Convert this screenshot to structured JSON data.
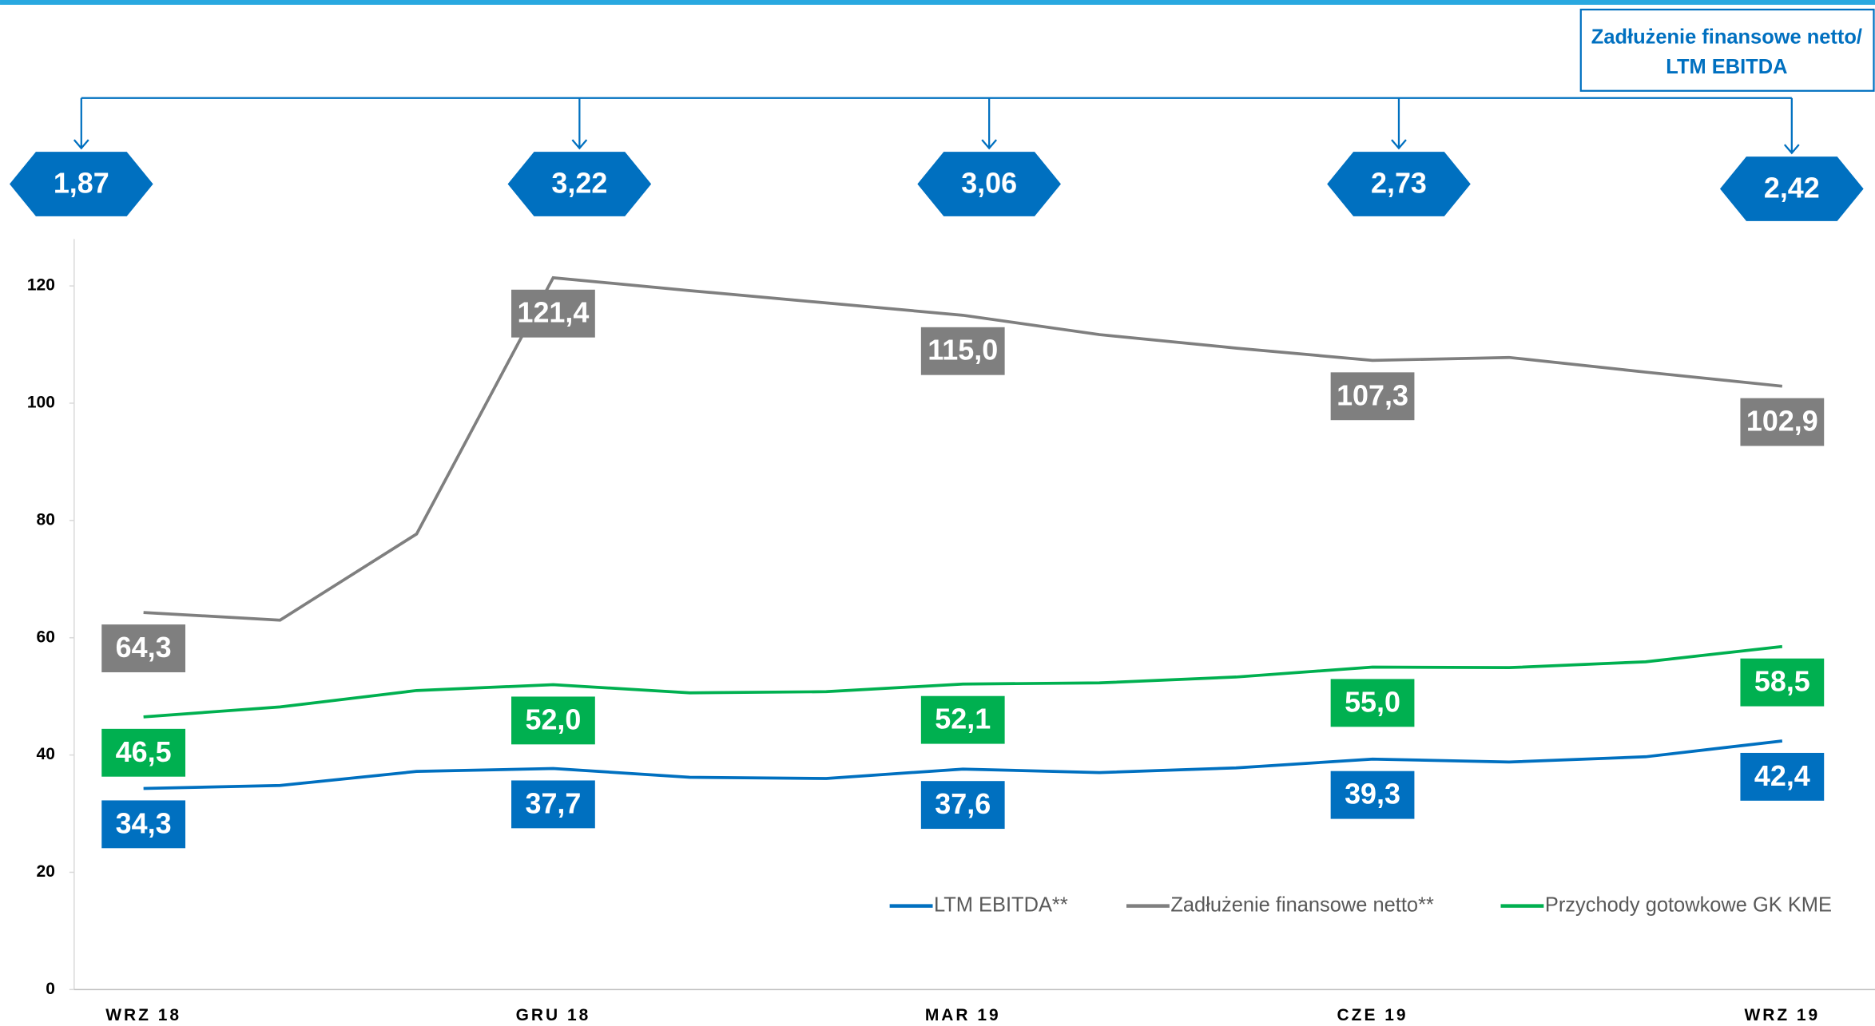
{
  "chart_data": {
    "type": "line",
    "categories": [
      "WRZ 18",
      null,
      null,
      "GRU 18",
      null,
      null,
      "MAR 19",
      null,
      null,
      "CZE 19",
      null,
      null,
      "WRZ 19"
    ],
    "ylim": [
      0,
      128
    ],
    "yticks": [
      0,
      20,
      40,
      60,
      80,
      100,
      120
    ],
    "legend": "bottom-right",
    "series": [
      {
        "name": "LTM EBITDA**",
        "color": "#0070c0",
        "values": [
          34.3,
          34.8,
          37.2,
          37.7,
          36.2,
          36.0,
          37.6,
          37.0,
          37.8,
          39.3,
          38.8,
          39.7,
          42.4
        ],
        "value_labels": [
          "34,3",
          null,
          null,
          "37,7",
          null,
          null,
          "37,6",
          null,
          null,
          "39,3",
          null,
          null,
          "42,4"
        ]
      },
      {
        "name": "Zadłużenie finansowe netto**",
        "color": "#7f7f7f",
        "values": [
          64.3,
          63.0,
          77.7,
          121.4,
          119.2,
          117.1,
          115.0,
          111.7,
          109.4,
          107.3,
          107.8,
          105.3,
          102.9
        ],
        "value_labels": [
          "64,3",
          null,
          null,
          "121,4",
          null,
          null,
          "115,0",
          null,
          null,
          "107,3",
          null,
          null,
          "102,9"
        ]
      },
      {
        "name": "Przychody gotowkowe GK KME",
        "color": "#00b050",
        "values": [
          46.5,
          48.2,
          51.0,
          52.0,
          50.6,
          50.8,
          52.1,
          52.3,
          53.3,
          55.0,
          54.9,
          55.9,
          58.5
        ],
        "value_labels": [
          "46,5",
          null,
          null,
          "52,0",
          null,
          null,
          "52,1",
          null,
          null,
          "55,0",
          null,
          null,
          "58,5"
        ]
      }
    ],
    "ratio": {
      "title_lines": [
        "Zadłużenie finansowe netto/",
        "LTM EBITDA"
      ],
      "color": "#0070c0",
      "values": [
        1.87,
        3.22,
        3.06,
        2.73,
        2.42
      ],
      "value_labels": [
        "1,87",
        "3,22",
        "3,06",
        "2,73",
        "2,42"
      ]
    }
  }
}
